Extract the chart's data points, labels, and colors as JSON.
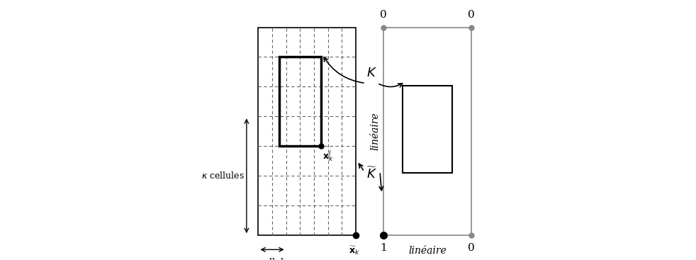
{
  "bg_color": "#ffffff",
  "grid_n": 7,
  "lineaire_bottom": "linéaire",
  "lineaire_left": "linéaire",
  "K_label": "$K$",
  "Ktilde_label": "$\\widetilde{K}$",
  "kappa_cellules_label": "$\\kappa$ cellules",
  "xk_label": "$\\widetilde{\\mathbf{x}}_k$",
  "xkl_label": "$\\mathbf{x}_k^l$"
}
